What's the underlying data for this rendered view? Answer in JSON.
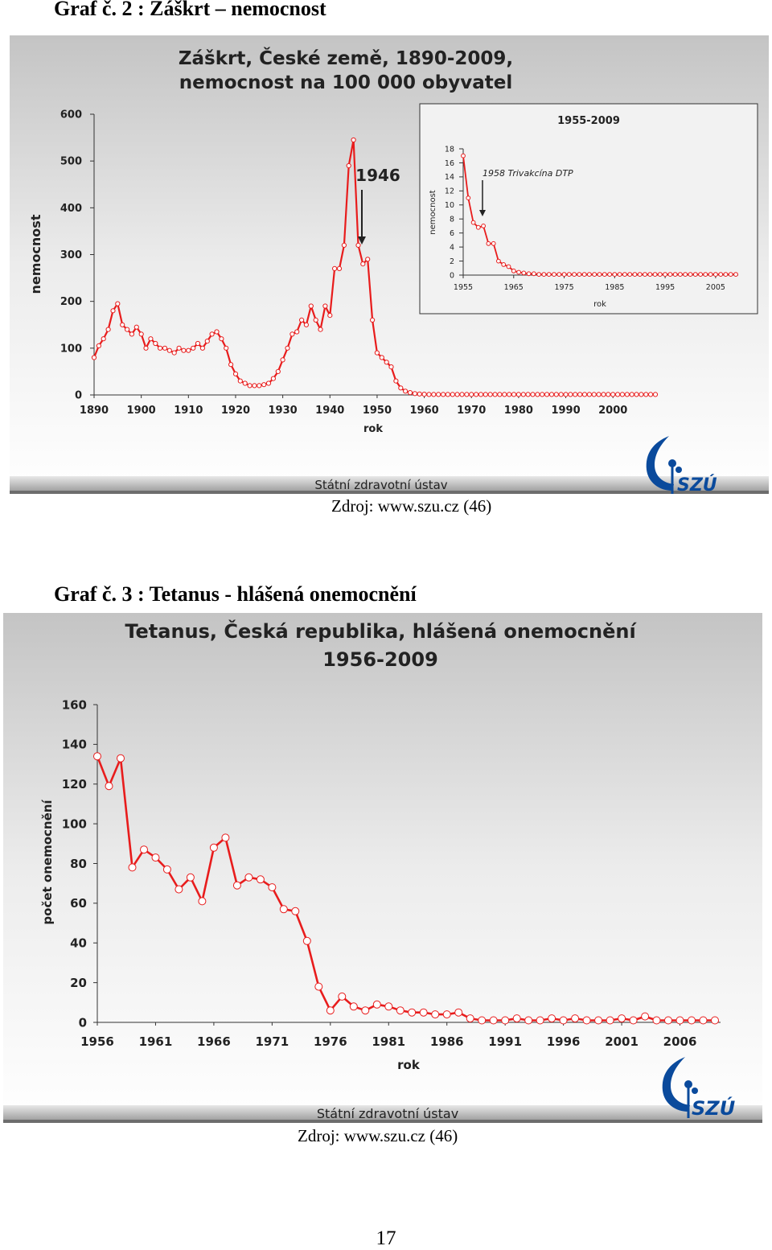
{
  "figure1": {
    "caption": "Graf č. 2 : Záškrt – nemocnost",
    "source": "Zdroj:  www.szu.cz (46)",
    "footer_text": "Státní zdravotní ústav",
    "logo_text": "SZÚ",
    "chart_data": {
      "type": "line",
      "title": "Záškrt, České země, 1890-2009,",
      "subtitle": "nemocnost na 100 000 obyvatel",
      "xlabel": "rok",
      "ylabel": "nemocnost",
      "xlim": [
        1890,
        2009
      ],
      "ylim": [
        0,
        600
      ],
      "x_ticks": [
        "1890",
        "1900",
        "1910",
        "1920",
        "1930",
        "1940",
        "1950",
        "1960",
        "1970",
        "1980",
        "1990",
        "2000"
      ],
      "y_ticks": [
        "0",
        "100",
        "200",
        "300",
        "400",
        "500",
        "600"
      ],
      "annotation": "1946",
      "annotation_year": 1946,
      "line_color": "#e81c1c",
      "series": [
        {
          "x": [
            1890,
            1891,
            1892,
            1893,
            1894,
            1895,
            1896,
            1897,
            1898,
            1899,
            1900,
            1901,
            1902,
            1903,
            1904,
            1905,
            1906,
            1907,
            1908,
            1909,
            1910,
            1911,
            1912,
            1913,
            1914,
            1915,
            1916,
            1917,
            1918,
            1919,
            1920,
            1921,
            1922,
            1923,
            1924,
            1925,
            1926,
            1927,
            1928,
            1929,
            1930,
            1931,
            1932,
            1933,
            1934,
            1935,
            1936,
            1937,
            1938,
            1939,
            1940,
            1941,
            1942,
            1943,
            1944,
            1945,
            1946,
            1947,
            1948,
            1949,
            1950,
            1951,
            1952,
            1953,
            1954,
            1955,
            1956,
            1957,
            1958,
            1959,
            1960,
            1961,
            1962,
            1963,
            1964,
            1965,
            1966,
            1967,
            1968,
            1969,
            1970,
            1971,
            1972,
            1973,
            1974,
            1975,
            1976,
            1977,
            1978,
            1979,
            1980,
            1981,
            1982,
            1983,
            1984,
            1985,
            1986,
            1987,
            1988,
            1989,
            1990,
            1991,
            1992,
            1993,
            1994,
            1995,
            1996,
            1997,
            1998,
            1999,
            2000,
            2001,
            2002,
            2003,
            2004,
            2005,
            2006,
            2007,
            2008,
            2009
          ],
          "y": [
            80,
            105,
            120,
            140,
            180,
            195,
            150,
            140,
            130,
            145,
            130,
            100,
            120,
            110,
            100,
            100,
            95,
            90,
            100,
            95,
            95,
            100,
            110,
            100,
            115,
            130,
            135,
            120,
            100,
            65,
            45,
            30,
            25,
            20,
            20,
            20,
            22,
            25,
            35,
            50,
            75,
            100,
            130,
            135,
            160,
            150,
            190,
            160,
            140,
            190,
            170,
            270,
            270,
            320,
            490,
            545,
            320,
            280,
            290,
            160,
            90,
            80,
            70,
            60,
            30,
            15,
            8,
            5,
            3,
            2,
            1.5,
            1,
            1,
            1,
            1,
            1,
            1,
            1,
            1,
            1,
            1,
            1,
            1,
            1,
            1,
            1,
            1,
            1,
            1,
            1,
            1,
            1,
            1,
            1,
            1,
            1,
            1,
            1,
            1,
            1,
            1,
            1,
            1,
            1,
            1,
            1,
            1,
            1,
            1,
            1,
            1,
            1,
            1,
            1,
            1,
            1,
            1,
            1,
            1,
            1
          ]
        }
      ]
    },
    "inset_chart": {
      "type": "line",
      "title": "1955-2009",
      "xlabel": "rok",
      "ylabel": "nemocnost",
      "annotation": "1958 Trivakcína DTP",
      "annotation_year": 1958,
      "xlim": [
        1955,
        2009
      ],
      "ylim": [
        0,
        18
      ],
      "x_ticks": [
        "1955",
        "1965",
        "1975",
        "1985",
        "1995",
        "2005"
      ],
      "y_ticks": [
        "0",
        "2",
        "4",
        "6",
        "8",
        "10",
        "12",
        "14",
        "16",
        "18"
      ],
      "series": [
        {
          "x": [
            1955,
            1956,
            1957,
            1958,
            1959,
            1960,
            1961,
            1962,
            1963,
            1964,
            1965,
            1966,
            1967,
            1968,
            1969,
            1970,
            1971,
            1972,
            1973,
            1974,
            1975,
            1976,
            1977,
            1978,
            1979,
            1980,
            1981,
            1982,
            1983,
            1984,
            1985,
            1986,
            1987,
            1988,
            1989,
            1990,
            1991,
            1992,
            1993,
            1994,
            1995,
            1996,
            1997,
            1998,
            1999,
            2000,
            2001,
            2002,
            2003,
            2004,
            2005,
            2006,
            2007,
            2008,
            2009
          ],
          "y": [
            17,
            11,
            7.5,
            6.8,
            7,
            4.5,
            4.5,
            2,
            1.5,
            1.2,
            0.6,
            0.4,
            0.3,
            0.2,
            0.2,
            0.1,
            0.1,
            0.1,
            0.1,
            0.1,
            0.1,
            0.1,
            0.1,
            0.1,
            0.1,
            0.1,
            0.1,
            0.1,
            0.1,
            0.1,
            0.1,
            0.1,
            0.1,
            0.1,
            0.1,
            0.1,
            0.1,
            0.1,
            0.1,
            0.1,
            0.1,
            0.1,
            0.1,
            0.1,
            0.1,
            0.1,
            0.1,
            0.1,
            0.1,
            0.1,
            0.1,
            0.1,
            0.1,
            0.1,
            0.1
          ]
        }
      ]
    }
  },
  "figure2": {
    "caption": "Graf č. 3 : Tetanus - hlášená onemocnění",
    "source": "Zdroj:  www.szu.cz (46)",
    "footer_text": "Státní zdravotní ústav",
    "logo_text": "SZÚ",
    "chart_data": {
      "type": "line",
      "title": "Tetanus, Česká republika, hlášená onemocnění",
      "subtitle": "1956-2009",
      "xlabel": "rok",
      "ylabel": "počet onemocnění",
      "xlim": [
        1956,
        2009
      ],
      "ylim": [
        0,
        160
      ],
      "x_ticks": [
        "1956",
        "1961",
        "1966",
        "1971",
        "1976",
        "1981",
        "1986",
        "1991",
        "1996",
        "2001",
        "2006"
      ],
      "y_ticks": [
        "0",
        "20",
        "40",
        "60",
        "80",
        "100",
        "120",
        "140",
        "160"
      ],
      "line_color": "#e81c1c",
      "series": [
        {
          "x": [
            1956,
            1957,
            1958,
            1959,
            1960,
            1961,
            1962,
            1963,
            1964,
            1965,
            1966,
            1967,
            1968,
            1969,
            1970,
            1971,
            1972,
            1973,
            1974,
            1975,
            1976,
            1977,
            1978,
            1979,
            1980,
            1981,
            1982,
            1983,
            1984,
            1985,
            1986,
            1987,
            1988,
            1989,
            1990,
            1991,
            1992,
            1993,
            1994,
            1995,
            1996,
            1997,
            1998,
            1999,
            2000,
            2001,
            2002,
            2003,
            2004,
            2005,
            2006,
            2007,
            2008,
            2009
          ],
          "y": [
            134,
            119,
            133,
            78,
            87,
            83,
            77,
            67,
            73,
            61,
            88,
            93,
            69,
            73,
            72,
            68,
            57,
            56,
            41,
            18,
            6,
            13,
            8,
            6,
            9,
            8,
            6,
            5,
            5,
            4,
            4,
            5,
            2,
            1,
            1,
            1,
            2,
            1,
            1,
            2,
            1,
            2,
            1,
            1,
            1,
            2,
            1,
            3,
            1,
            1,
            1,
            1,
            1,
            1
          ]
        }
      ]
    }
  },
  "page_number": "17"
}
